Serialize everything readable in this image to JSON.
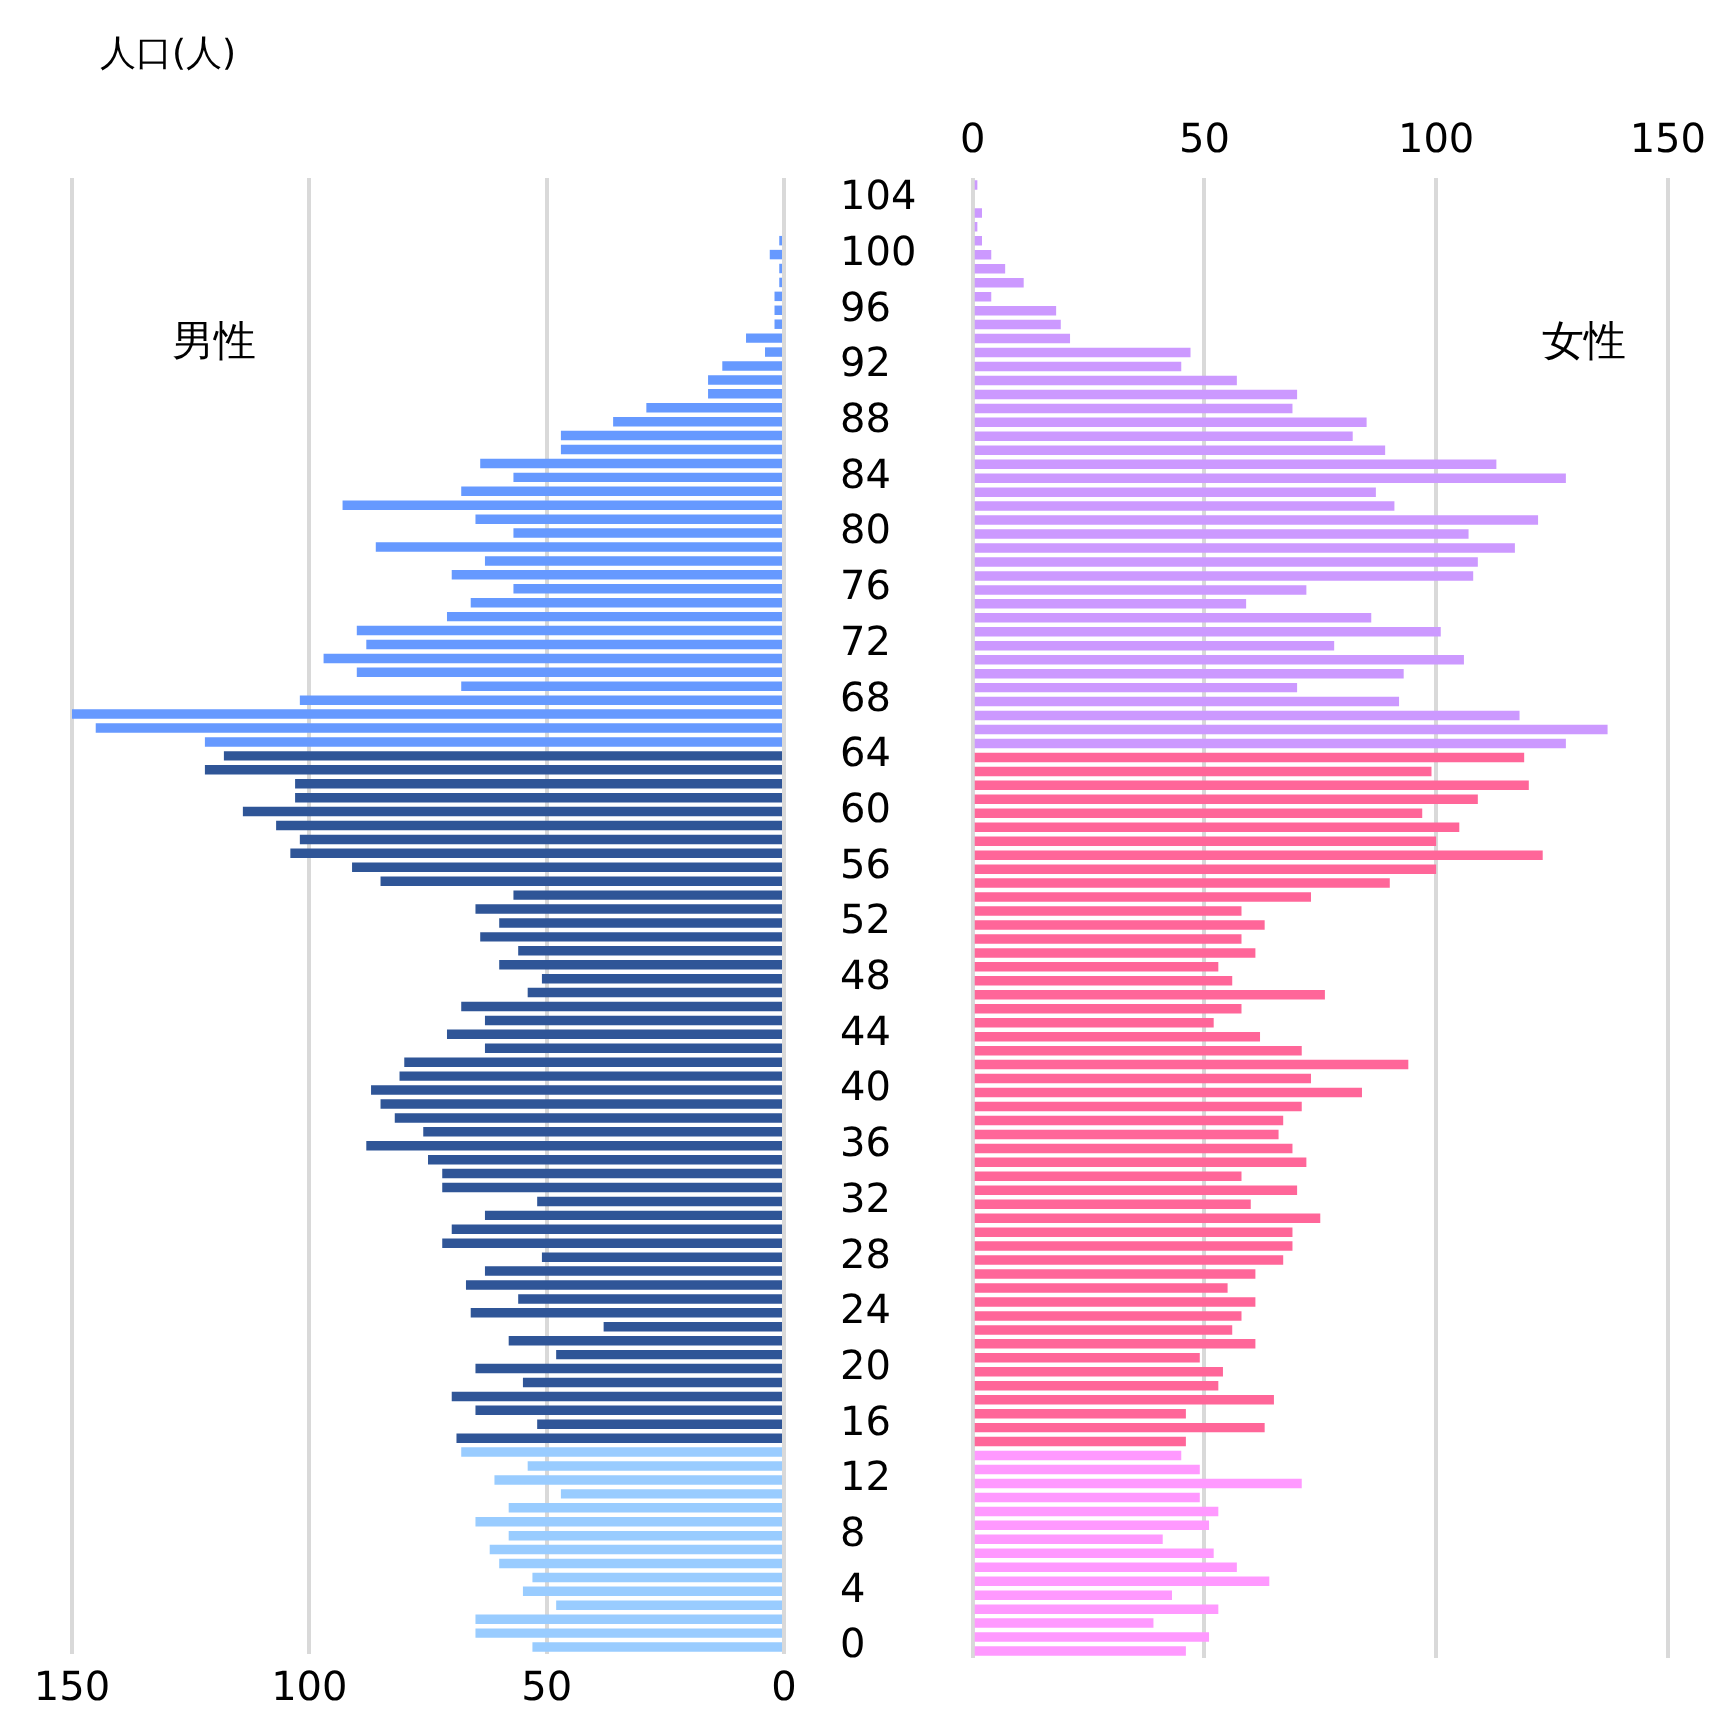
{
  "chart_data": [
    {
      "type": "bar",
      "orientation": "horizontal",
      "title": "人口(人)",
      "legend": false,
      "grid": "x",
      "categories": [
        null,
        "104",
        null,
        null,
        null,
        "100",
        null,
        null,
        null,
        "96",
        null,
        null,
        null,
        "92",
        null,
        null,
        null,
        "88",
        null,
        null,
        null,
        "84",
        null,
        null,
        null,
        "80",
        null,
        null,
        null,
        "76",
        null,
        null,
        null,
        "72",
        null,
        null,
        null,
        "68",
        null,
        null,
        null,
        "64",
        null,
        null,
        null,
        "60",
        null,
        null,
        null,
        "56",
        null,
        null,
        null,
        "52",
        null,
        null,
        null,
        "48",
        null,
        null,
        null,
        "44",
        null,
        null,
        null,
        "40",
        null,
        null,
        null,
        "36",
        null,
        null,
        null,
        "32",
        null,
        null,
        null,
        "28",
        null,
        null,
        null,
        "24",
        null,
        null,
        null,
        "20",
        null,
        null,
        null,
        "16",
        null,
        null,
        null,
        "12",
        null,
        null,
        null,
        "8",
        null,
        null,
        null,
        "4",
        null,
        null,
        null,
        "0"
      ],
      "xlim": [
        150,
        0
      ],
      "xticks": [
        150,
        100,
        50,
        0
      ],
      "series": [
        {
          "name": "男性",
          "values": [
            0,
            0,
            0,
            0,
            1,
            3,
            1,
            1,
            2,
            2,
            2,
            8,
            4,
            13,
            16,
            16,
            29,
            36,
            47,
            47,
            64,
            57,
            68,
            93,
            65,
            57,
            86,
            63,
            70,
            57,
            66,
            71,
            90,
            88,
            97,
            90,
            68,
            102,
            150,
            145,
            122,
            118,
            122,
            103,
            103,
            114,
            107,
            102,
            104,
            91,
            85,
            57,
            65,
            60,
            64,
            56,
            60,
            51,
            54,
            68,
            63,
            71,
            63,
            80,
            81,
            87,
            85,
            82,
            76,
            88,
            75,
            72,
            72,
            52,
            63,
            70,
            72,
            51,
            63,
            67,
            56,
            66,
            38,
            58,
            48,
            65,
            55,
            70,
            65,
            52,
            69,
            68,
            54,
            61,
            47,
            58,
            65,
            58,
            62,
            60,
            53,
            55,
            48,
            65,
            65,
            53
          ],
          "colors": [
            "#6699ff",
            "#6699ff",
            "#6699ff",
            "#6699ff",
            "#6699ff",
            "#6699ff",
            "#6699ff",
            "#6699ff",
            "#6699ff",
            "#6699ff",
            "#6699ff",
            "#6699ff",
            "#6699ff",
            "#6699ff",
            "#6699ff",
            "#6699ff",
            "#6699ff",
            "#6699ff",
            "#6699ff",
            "#6699ff",
            "#6699ff",
            "#6699ff",
            "#6699ff",
            "#6699ff",
            "#6699ff",
            "#6699ff",
            "#6699ff",
            "#6699ff",
            "#6699ff",
            "#6699ff",
            "#6699ff",
            "#6699ff",
            "#6699ff",
            "#6699ff",
            "#6699ff",
            "#6699ff",
            "#6699ff",
            "#6699ff",
            "#6699ff",
            "#6699ff",
            "#6699ff",
            "#2f5597",
            "#2f5597",
            "#2f5597",
            "#2f5597",
            "#2f5597",
            "#2f5597",
            "#2f5597",
            "#2f5597",
            "#2f5597",
            "#2f5597",
            "#2f5597",
            "#2f5597",
            "#2f5597",
            "#2f5597",
            "#2f5597",
            "#2f5597",
            "#2f5597",
            "#2f5597",
            "#2f5597",
            "#2f5597",
            "#2f5597",
            "#2f5597",
            "#2f5597",
            "#2f5597",
            "#2f5597",
            "#2f5597",
            "#2f5597",
            "#2f5597",
            "#2f5597",
            "#2f5597",
            "#2f5597",
            "#2f5597",
            "#2f5597",
            "#2f5597",
            "#2f5597",
            "#2f5597",
            "#2f5597",
            "#2f5597",
            "#2f5597",
            "#2f5597",
            "#2f5597",
            "#2f5597",
            "#2f5597",
            "#2f5597",
            "#2f5597",
            "#2f5597",
            "#2f5597",
            "#2f5597",
            "#2f5597",
            "#2f5597",
            "#99ccff",
            "#99ccff",
            "#99ccff",
            "#99ccff",
            "#99ccff",
            "#99ccff",
            "#99ccff",
            "#99ccff",
            "#99ccff",
            "#99ccff",
            "#99ccff",
            "#99ccff",
            "#99ccff",
            "#99ccff",
            "#99ccff"
          ]
        }
      ]
    },
    {
      "type": "bar",
      "orientation": "horizontal",
      "legend": false,
      "grid": "x",
      "tick_labels": "x",
      "categories": [
        null,
        "104",
        null,
        null,
        null,
        "100",
        null,
        null,
        null,
        "96",
        null,
        null,
        null,
        "92",
        null,
        null,
        null,
        "88",
        null,
        null,
        null,
        "84",
        null,
        null,
        null,
        "80",
        null,
        null,
        null,
        "76",
        null,
        null,
        null,
        "72",
        null,
        null,
        null,
        "68",
        null,
        null,
        null,
        "64",
        null,
        null,
        null,
        "60",
        null,
        null,
        null,
        "56",
        null,
        null,
        null,
        "52",
        null,
        null,
        null,
        "48",
        null,
        null,
        null,
        "44",
        null,
        null,
        null,
        "40",
        null,
        null,
        null,
        "36",
        null,
        null,
        null,
        "32",
        null,
        null,
        null,
        "28",
        null,
        null,
        null,
        "24",
        null,
        null,
        null,
        "20",
        null,
        null,
        null,
        "16",
        null,
        null,
        null,
        "12",
        null,
        null,
        null,
        "8",
        null,
        null,
        null,
        "4",
        null,
        null,
        null,
        "0"
      ],
      "xlim": [
        0,
        150
      ],
      "xticks": [
        0,
        50,
        100,
        150
      ],
      "series": [
        {
          "name": "女性",
          "values": [
            1,
            0,
            2,
            1,
            2,
            4,
            7,
            11,
            4,
            18,
            19,
            21,
            47,
            45,
            57,
            70,
            69,
            85,
            82,
            89,
            113,
            128,
            87,
            91,
            122,
            107,
            117,
            109,
            108,
            72,
            59,
            86,
            101,
            78,
            106,
            93,
            70,
            92,
            118,
            137,
            128,
            119,
            99,
            120,
            109,
            97,
            105,
            100,
            123,
            100,
            90,
            73,
            58,
            63,
            58,
            61,
            53,
            56,
            76,
            58,
            52,
            62,
            71,
            94,
            73,
            84,
            71,
            67,
            66,
            69,
            72,
            58,
            70,
            60,
            75,
            69,
            69,
            67,
            61,
            55,
            61,
            58,
            56,
            61,
            49,
            54,
            53,
            65,
            46,
            63,
            46,
            45,
            49,
            71,
            49,
            53,
            51,
            41,
            52,
            57,
            64,
            43,
            53,
            39,
            51,
            46
          ],
          "colors": [
            "#cc99ff",
            "#cc99ff",
            "#cc99ff",
            "#cc99ff",
            "#cc99ff",
            "#cc99ff",
            "#cc99ff",
            "#cc99ff",
            "#cc99ff",
            "#cc99ff",
            "#cc99ff",
            "#cc99ff",
            "#cc99ff",
            "#cc99ff",
            "#cc99ff",
            "#cc99ff",
            "#cc99ff",
            "#cc99ff",
            "#cc99ff",
            "#cc99ff",
            "#cc99ff",
            "#cc99ff",
            "#cc99ff",
            "#cc99ff",
            "#cc99ff",
            "#cc99ff",
            "#cc99ff",
            "#cc99ff",
            "#cc99ff",
            "#cc99ff",
            "#cc99ff",
            "#cc99ff",
            "#cc99ff",
            "#cc99ff",
            "#cc99ff",
            "#cc99ff",
            "#cc99ff",
            "#cc99ff",
            "#cc99ff",
            "#cc99ff",
            "#cc99ff",
            "#ff6699",
            "#ff6699",
            "#ff6699",
            "#ff6699",
            "#ff6699",
            "#ff6699",
            "#ff6699",
            "#ff6699",
            "#ff6699",
            "#ff6699",
            "#ff6699",
            "#ff6699",
            "#ff6699",
            "#ff6699",
            "#ff6699",
            "#ff6699",
            "#ff6699",
            "#ff6699",
            "#ff6699",
            "#ff6699",
            "#ff6699",
            "#ff6699",
            "#ff6699",
            "#ff6699",
            "#ff6699",
            "#ff6699",
            "#ff6699",
            "#ff6699",
            "#ff6699",
            "#ff6699",
            "#ff6699",
            "#ff6699",
            "#ff6699",
            "#ff6699",
            "#ff6699",
            "#ff6699",
            "#ff6699",
            "#ff6699",
            "#ff6699",
            "#ff6699",
            "#ff6699",
            "#ff6699",
            "#ff6699",
            "#ff6699",
            "#ff6699",
            "#ff6699",
            "#ff6699",
            "#ff6699",
            "#ff6699",
            "#ff6699",
            "#ff99ff",
            "#ff99ff",
            "#ff99ff",
            "#ff99ff",
            "#ff99ff",
            "#ff99ff",
            "#ff99ff",
            "#ff99ff",
            "#ff99ff",
            "#ff99ff",
            "#ff99ff",
            "#ff99ff",
            "#ff99ff",
            "#ff99ff",
            "#ff99ff"
          ]
        }
      ]
    }
  ]
}
